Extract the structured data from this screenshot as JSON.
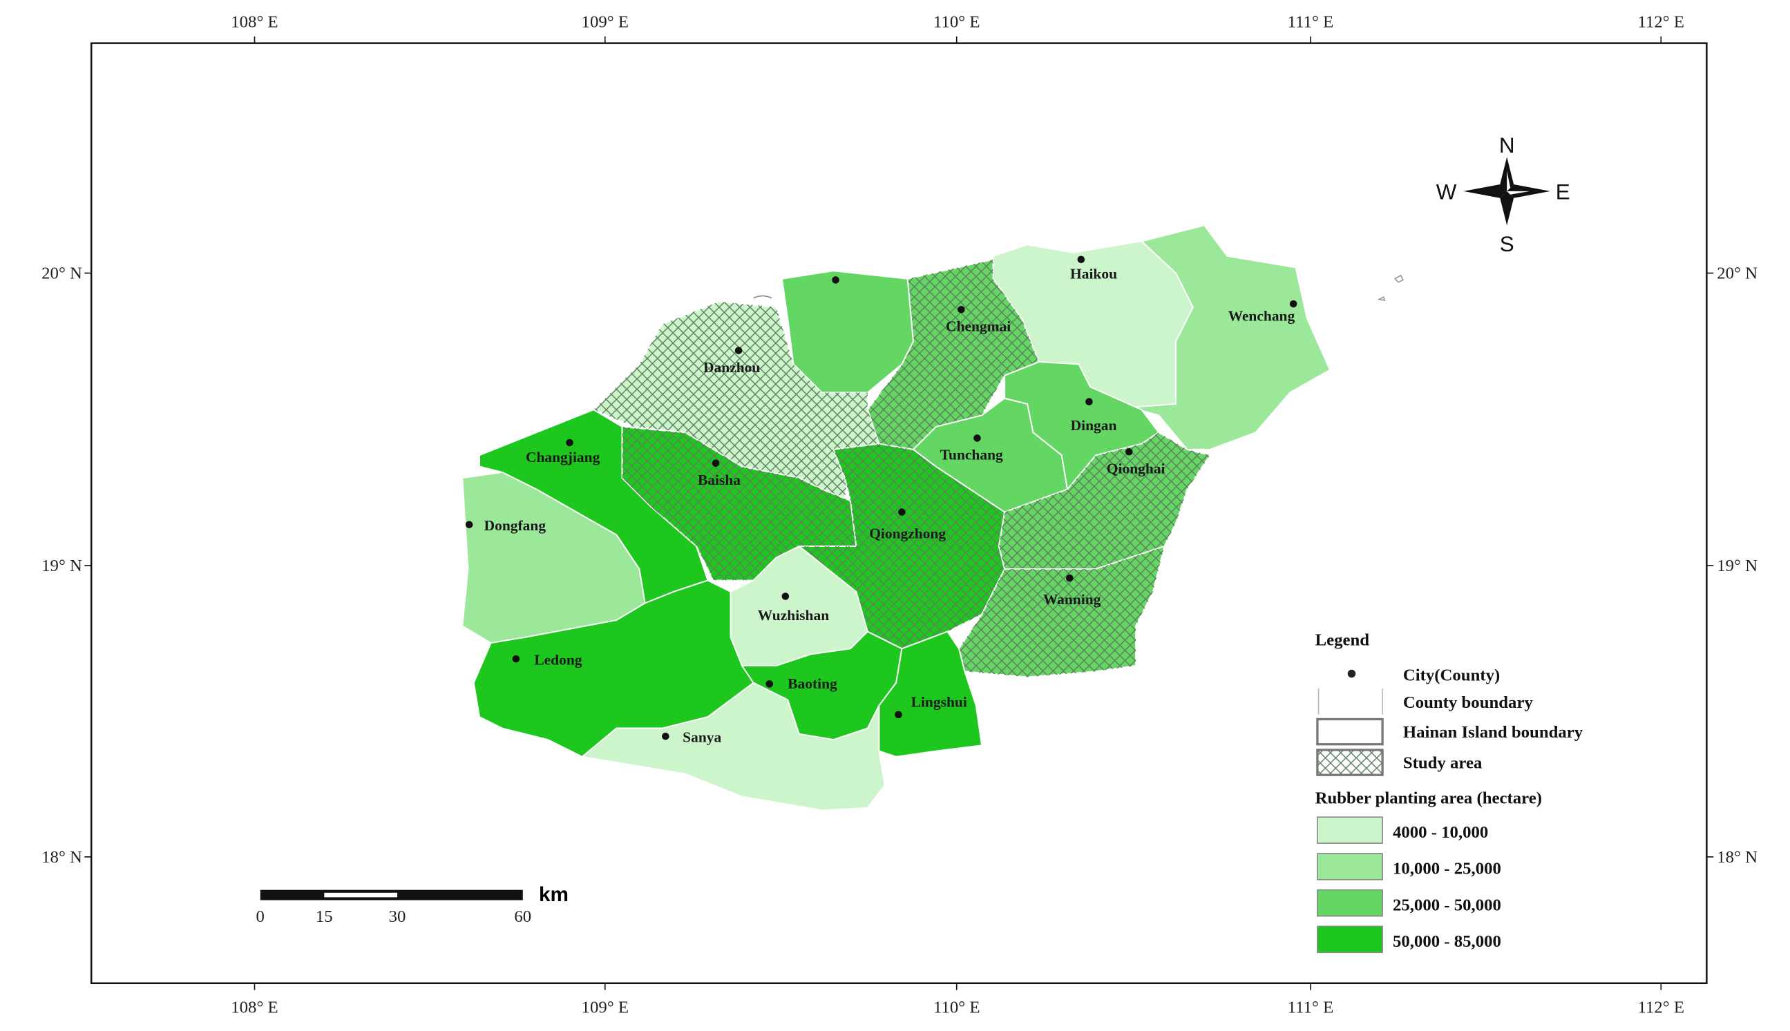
{
  "map": {
    "longitude_labels": [
      "108° E",
      "109° E",
      "110° E",
      "111° E",
      "112° E"
    ],
    "latitude_labels": [
      "20° N",
      "19° N",
      "18° N"
    ],
    "compass": {
      "north": "N",
      "east": "E",
      "south": "S",
      "west": "W"
    },
    "counties": [
      {
        "name": "Haikou",
        "class": 0,
        "study_area": false
      },
      {
        "name": "Wenchang",
        "class": 1,
        "study_area": false
      },
      {
        "name": "Chengmai",
        "class": 2,
        "study_area": true
      },
      {
        "name": null,
        "class": 2,
        "study_area": false
      },
      {
        "name": "Danzhou",
        "class": 0,
        "study_area": true
      },
      {
        "name": "Changjiang",
        "class": 3,
        "study_area": false
      },
      {
        "name": "Dongfang",
        "class": 1,
        "study_area": false
      },
      {
        "name": "Baisha",
        "class": 3,
        "study_area": true
      },
      {
        "name": "Qiongzhong",
        "class": 3,
        "study_area": true
      },
      {
        "name": "Tunchang",
        "class": 2,
        "study_area": false
      },
      {
        "name": "Dingan",
        "class": 2,
        "study_area": false
      },
      {
        "name": "Qionghai",
        "class": 2,
        "study_area": true
      },
      {
        "name": "Wanning",
        "class": 2,
        "study_area": true
      },
      {
        "name": "Wuzhishan",
        "class": 0,
        "study_area": false
      },
      {
        "name": "Ledong",
        "class": 3,
        "study_area": false
      },
      {
        "name": "Baoting",
        "class": 3,
        "study_area": false
      },
      {
        "name": "Lingshui",
        "class": 3,
        "study_area": false
      },
      {
        "name": "Sanya",
        "class": 0,
        "study_area": false
      }
    ],
    "scale_bar": {
      "labels": [
        "0",
        "15",
        "30",
        "60"
      ],
      "unit": "km"
    },
    "legend": {
      "title": "Legend",
      "items": [
        "City(County)",
        "County boundary",
        "Hainan Island boundary",
        "Study area"
      ],
      "area_title": "Rubber planting area (hectare)",
      "classes": [
        {
          "label": "4000 - 10,000",
          "color": "#ccf5cc"
        },
        {
          "label": "10,000 - 25,000",
          "color": "#9be89b"
        },
        {
          "label": "25,000 - 50,000",
          "color": "#63d663"
        },
        {
          "label": "50,000 - 85,000",
          "color": "#1ec71e"
        }
      ]
    }
  }
}
